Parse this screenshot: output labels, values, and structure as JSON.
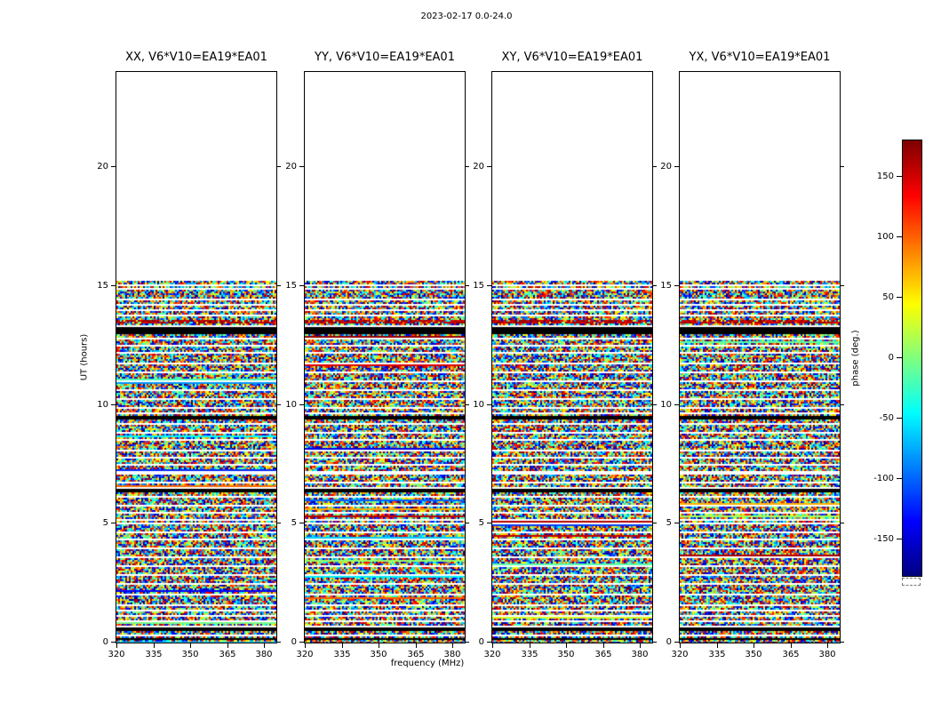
{
  "figure": {
    "title": "2023-02-17 0.0-24.0",
    "xlabel": "frequency (MHz)",
    "ylabel": "UT (hours)",
    "colorbar_label": "phase (deg.)"
  },
  "chart_data": {
    "type": "heatmap",
    "title": "2023-02-17 0.0-24.0",
    "xlabel": "frequency (MHz)",
    "ylabel": "UT (hours)",
    "panels": [
      {
        "pol": "XX",
        "label": "XX, V6*V10=EA19*EA01",
        "baseline": "V6*V10=EA19*EA01"
      },
      {
        "pol": "YY",
        "label": "YY, V6*V10=EA19*EA01",
        "baseline": "V6*V10=EA19*EA01"
      },
      {
        "pol": "XY",
        "label": "XY, V6*V10=EA19*EA01",
        "baseline": "V6*V10=EA19*EA01"
      },
      {
        "pol": "YX",
        "label": "YX, V6*V10=EA19*EA01",
        "baseline": "V6*V10=EA19*EA01"
      }
    ],
    "x_range_mhz": [
      320,
      385
    ],
    "x_ticks": [
      320,
      335,
      350,
      365,
      380
    ],
    "y_range_hours": [
      0,
      24
    ],
    "y_ticks": [
      0,
      5,
      10,
      15,
      20
    ],
    "colormap": "jet",
    "value_label": "phase (deg.)",
    "value_range_deg": [
      -180,
      180
    ],
    "colorbar_ticks": [
      150,
      100,
      50,
      0,
      -50,
      -100,
      -150
    ],
    "data_extent_hours": [
      0.0,
      15.2
    ],
    "values_description": "Uniform random visibility phase noise between -180 and +180 deg filling 0.0-15.2 UT; no data above 15.2 UT; horizontal scan gaps and flagged (black) bands; strong coherent red band near 13.5 UT",
    "gap_lines_hours": [
      0.9,
      1.35,
      1.6,
      2.05,
      2.45,
      2.85,
      3.25,
      3.6,
      3.95,
      4.3,
      4.65,
      5.0,
      5.45,
      5.75,
      6.1,
      6.75,
      7.45,
      7.75,
      8.1,
      8.5,
      8.85,
      9.2,
      9.9,
      10.25,
      10.6,
      11.0,
      11.35,
      11.75,
      12.15,
      12.5,
      12.8,
      13.75,
      14.0,
      14.2,
      14.9,
      15.05
    ],
    "black_bands_hours": [
      [
        0.08,
        0.22
      ],
      [
        0.5,
        0.62
      ],
      [
        6.33,
        6.48
      ],
      [
        9.42,
        9.56
      ],
      [
        13.0,
        13.28
      ]
    ],
    "white_bands_hours": [
      [
        0.24,
        0.32
      ],
      [
        0.64,
        0.72
      ],
      [
        1.05,
        1.15
      ],
      [
        5.1,
        5.18
      ],
      [
        6.5,
        6.56
      ],
      [
        7.05,
        7.18
      ],
      [
        9.58,
        9.66
      ],
      [
        13.3,
        13.38
      ],
      [
        14.38,
        14.46
      ]
    ],
    "red_bands_hours": [
      [
        13.4,
        13.56
      ]
    ]
  }
}
